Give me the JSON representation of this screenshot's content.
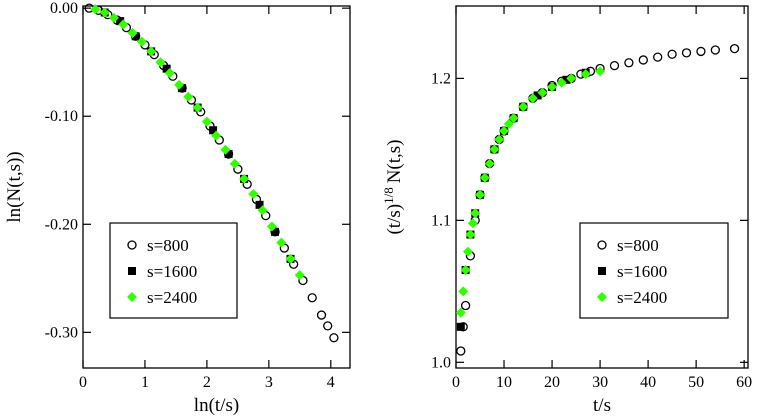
{
  "chart_data": [
    {
      "type": "scatter",
      "xlabel": "ln(t/s)",
      "ylabel": [
        "ln(N(t,s))"
      ],
      "xlim": [
        0,
        4.31
      ],
      "ylim": [
        -0.333,
        0.002
      ],
      "xticks": [
        0,
        1,
        2,
        3,
        4
      ],
      "yticks": [
        {
          "value": 0,
          "label": "0.00"
        },
        {
          "value": -0.1,
          "label": "-0.10"
        },
        {
          "value": -0.2,
          "label": "-0.20"
        },
        {
          "value": -0.3,
          "label": "-0.30"
        }
      ],
      "legend": "lower left",
      "series": [
        {
          "name": "s=800",
          "color": "#000000",
          "marker": "open-circle",
          "x": [
            0.1,
            0.25,
            0.4,
            0.55,
            0.7,
            0.85,
            1.0,
            1.15,
            1.3,
            1.45,
            1.6,
            1.75,
            1.9,
            2.05,
            2.2,
            2.35,
            2.5,
            2.65,
            2.8,
            2.95,
            3.1,
            3.25,
            3.4,
            3.55,
            3.7,
            3.85,
            3.95,
            4.05
          ],
          "values": [
            0.0,
            -0.002,
            -0.006,
            -0.011,
            -0.018,
            -0.026,
            -0.034,
            -0.043,
            -0.053,
            -0.063,
            -0.074,
            -0.085,
            -0.096,
            -0.109,
            -0.122,
            -0.135,
            -0.149,
            -0.163,
            -0.177,
            -0.192,
            -0.207,
            -0.222,
            -0.237,
            -0.252,
            -0.268,
            -0.284,
            -0.294,
            -0.305
          ]
        },
        {
          "name": "s=1600",
          "color": "#000000",
          "marker": "square",
          "x": [
            0.35,
            0.6,
            0.85,
            1.1,
            1.35,
            1.6,
            1.85,
            2.1,
            2.35,
            2.6,
            2.85,
            3.1,
            3.35
          ],
          "values": [
            -0.004,
            -0.012,
            -0.026,
            -0.04,
            -0.056,
            -0.074,
            -0.092,
            -0.113,
            -0.135,
            -0.158,
            -0.182,
            -0.207,
            -0.232
          ]
        },
        {
          "name": "s=2400",
          "color": "#33ff00",
          "marker": "diamond",
          "x": [
            0.2,
            0.35,
            0.5,
            0.65,
            0.8,
            0.95,
            1.1,
            1.25,
            1.4,
            1.55,
            1.7,
            1.85,
            2.0,
            2.15,
            2.3,
            2.45,
            2.6,
            2.75,
            2.9,
            3.05,
            3.2,
            3.35,
            3.5
          ],
          "values": [
            -0.001,
            -0.004,
            -0.009,
            -0.015,
            -0.023,
            -0.031,
            -0.04,
            -0.05,
            -0.06,
            -0.071,
            -0.082,
            -0.092,
            -0.105,
            -0.118,
            -0.131,
            -0.144,
            -0.158,
            -0.172,
            -0.187,
            -0.202,
            -0.217,
            -0.232,
            -0.247
          ]
        }
      ]
    },
    {
      "type": "scatter",
      "xlabel": "t/s",
      "ylabel": [
        "(t/s)",
        "1/8",
        "N(t,s)"
      ],
      "xlim": [
        0,
        60.8
      ],
      "ylim": [
        0.996,
        1.251
      ],
      "xticks": [
        0,
        10,
        20,
        30,
        40,
        50,
        60
      ],
      "yticks": [
        {
          "value": 1,
          "label": "1.0"
        },
        1.1,
        1.2
      ],
      "legend": "lower right",
      "series": [
        {
          "name": "s=800",
          "color": "#000000",
          "marker": "open-circle",
          "x": [
            1,
            1.5,
            2,
            3,
            4,
            5,
            6,
            7,
            8,
            9,
            10,
            12,
            14,
            16,
            18,
            20,
            22,
            24,
            26,
            28,
            30,
            33,
            36,
            39,
            42,
            45,
            48,
            51,
            54,
            58
          ],
          "values": [
            1.008,
            1.025,
            1.04,
            1.075,
            1.1,
            1.118,
            1.13,
            1.14,
            1.15,
            1.157,
            1.163,
            1.172,
            1.18,
            1.186,
            1.19,
            1.195,
            1.198,
            1.2,
            1.203,
            1.205,
            1.207,
            1.209,
            1.211,
            1.213,
            1.215,
            1.217,
            1.218,
            1.219,
            1.22,
            1.221
          ]
        },
        {
          "name": "s=1600",
          "color": "#000000",
          "marker": "square",
          "x": [
            1,
            2,
            3,
            4,
            5,
            6,
            8,
            10,
            12,
            14,
            17,
            20,
            23,
            27
          ],
          "values": [
            1.025,
            1.065,
            1.09,
            1.105,
            1.118,
            1.13,
            1.15,
            1.163,
            1.172,
            1.18,
            1.188,
            1.194,
            1.199,
            1.204
          ]
        },
        {
          "name": "s=2400",
          "color": "#33ff00",
          "marker": "diamond",
          "x": [
            1,
            1.5,
            2,
            2.5,
            3,
            3.5,
            4,
            5,
            6,
            7,
            8,
            9,
            10,
            11,
            12,
            14,
            16,
            18,
            20,
            22,
            24,
            27,
            30
          ],
          "values": [
            1.035,
            1.05,
            1.065,
            1.078,
            1.09,
            1.098,
            1.105,
            1.118,
            1.13,
            1.14,
            1.15,
            1.157,
            1.163,
            1.168,
            1.172,
            1.18,
            1.186,
            1.19,
            1.194,
            1.197,
            1.2,
            1.203,
            1.205
          ]
        }
      ]
    }
  ]
}
